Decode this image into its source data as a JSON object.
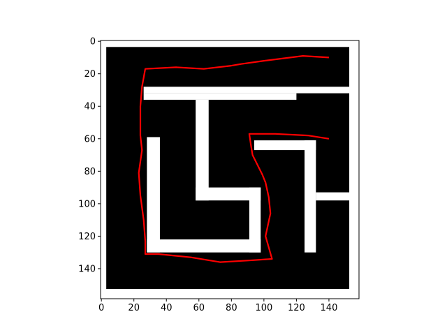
{
  "chart_data": {
    "type": "heatmap",
    "title": "",
    "xlabel": "",
    "ylabel": "",
    "xlim": [
      -0.5,
      158.5
    ],
    "ylim": [
      158.5,
      -0.5
    ],
    "y_inverted": true,
    "grid": false,
    "legend": "none",
    "x_ticks": [
      0,
      20,
      40,
      60,
      80,
      100,
      120,
      140
    ],
    "y_ticks": [
      0,
      20,
      40,
      60,
      80,
      100,
      120,
      140
    ],
    "x_tick_labels": [
      "0",
      "20",
      "40",
      "60",
      "80",
      "100",
      "120",
      "140"
    ],
    "y_tick_labels": [
      "0",
      "20",
      "40",
      "60",
      "80",
      "100",
      "120",
      "140"
    ],
    "colormap": "gray",
    "background_value": "white",
    "obstacle_value": "black",
    "free_regions": [
      {
        "name": "outer-border-top",
        "x0": -0.5,
        "x1": 158.5,
        "y0": -0.5,
        "y1": 3.5
      },
      {
        "name": "outer-border-bottom",
        "x0": -0.5,
        "x1": 158.5,
        "y0": 152.5,
        "y1": 158.5
      },
      {
        "name": "outer-border-left",
        "x0": -0.5,
        "x1": 3,
        "y0": -0.5,
        "y1": 158.5
      },
      {
        "name": "outer-border-right",
        "x0": 152.5,
        "x1": 158.5,
        "y0": -0.5,
        "y1": 158.5
      },
      {
        "name": "top-bar",
        "x0": 26,
        "x1": 153,
        "y0": 28,
        "y1": 32
      },
      {
        "name": "top-bar-lower",
        "x0": 26,
        "x1": 120,
        "y0": 32,
        "y1": 36
      },
      {
        "name": "center-vertical",
        "x0": 58,
        "x1": 66,
        "y0": 36,
        "y1": 98
      },
      {
        "name": "center-horizontal",
        "x0": 58,
        "x1": 98,
        "y0": 90,
        "y1": 98
      },
      {
        "name": "inner-right-vertical",
        "x0": 91,
        "x1": 98,
        "y0": 90,
        "y1": 130
      },
      {
        "name": "bottom-bar",
        "x0": 28,
        "x1": 98,
        "y0": 122,
        "y1": 130
      },
      {
        "name": "left-vertical",
        "x0": 28,
        "x1": 36,
        "y0": 59,
        "y1": 130
      },
      {
        "name": "right-top-bar",
        "x0": 94,
        "x1": 132,
        "y0": 61,
        "y1": 67
      },
      {
        "name": "right-vertical",
        "x0": 125,
        "x1": 132,
        "y0": 61,
        "y1": 130
      },
      {
        "name": "right-horizontal",
        "x0": 132,
        "x1": 153,
        "y0": 93,
        "y1": 98
      }
    ],
    "series": [
      {
        "color": "#ff0000",
        "x": [
          140,
          124,
          100,
          86,
          80,
          63,
          46,
          27,
          25,
          24,
          24,
          25,
          23,
          24,
          26,
          27,
          27,
          35,
          55,
          73,
          90,
          105,
          101,
          104,
          103,
          101,
          99,
          93,
          92,
          91,
          107,
          127,
          140
        ],
        "y": [
          10,
          9,
          12,
          14,
          15,
          17,
          16,
          17,
          28,
          40,
          58,
          67,
          81,
          95,
          110,
          123,
          131,
          131,
          133,
          136,
          135,
          134,
          120,
          106,
          96,
          87,
          82,
          70,
          64,
          57,
          57,
          58,
          60
        ]
      }
    ]
  }
}
